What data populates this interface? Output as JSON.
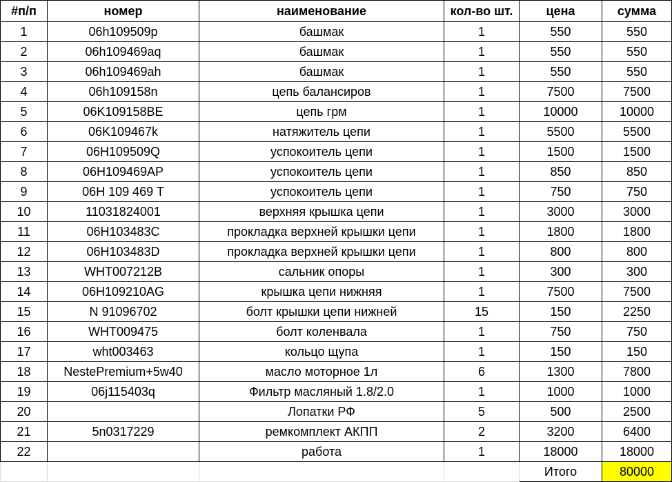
{
  "headers": [
    "#п/п",
    "номер",
    "наименование",
    "кол-во шт.",
    "цена",
    "сумма"
  ],
  "rows": [
    [
      "1",
      "06h109509p",
      "башмак",
      "1",
      "550",
      "550"
    ],
    [
      "2",
      "06h109469aq",
      "башмак",
      "1",
      "550",
      "550"
    ],
    [
      "3",
      "06h109469ah",
      "башмак",
      "1",
      "550",
      "550"
    ],
    [
      "4",
      "06h109158n",
      "цепь балансиров",
      "1",
      "7500",
      "7500"
    ],
    [
      "5",
      "06K109158BE",
      "цепь грм",
      "1",
      "10000",
      "10000"
    ],
    [
      "6",
      "06K109467k",
      "натяжитель цепи",
      "1",
      "5500",
      "5500"
    ],
    [
      "7",
      "06H109509Q",
      "успокоитель цепи",
      "1",
      "1500",
      "1500"
    ],
    [
      "8",
      "06H109469AP",
      "успокоитель цепи",
      "1",
      "850",
      "850"
    ],
    [
      "9",
      "06H 109 469 T",
      "успокоитель цепи",
      "1",
      "750",
      "750"
    ],
    [
      "10",
      "11031824001",
      "верхняя крышка цепи",
      "1",
      "3000",
      "3000"
    ],
    [
      "11",
      "06H103483C",
      "прокладка верхней крышки цепи",
      "1",
      "1800",
      "1800"
    ],
    [
      "12",
      "06H103483D",
      "прокладка верхней крышки цепи",
      "1",
      "800",
      "800"
    ],
    [
      "13",
      "WHT007212B",
      "сальник опоры",
      "1",
      "300",
      "300"
    ],
    [
      "14",
      "06H109210AG",
      "крышка цепи нижняя",
      "1",
      "7500",
      "7500"
    ],
    [
      "15",
      "N  91096702",
      "болт крышки цепи нижней",
      "15",
      "150",
      "2250"
    ],
    [
      "16",
      "WHT009475",
      "болт коленвала",
      "1",
      "750",
      "750"
    ],
    [
      "17",
      "wht003463",
      "кольцо щупа",
      "1",
      "150",
      "150"
    ],
    [
      "18",
      "NestePremium+5w40",
      "масло моторное 1л",
      "6",
      "1300",
      "7800"
    ],
    [
      "19",
      "06j115403q",
      "Фильтр масляный 1.8/2.0",
      "1",
      "1000",
      "1000"
    ],
    [
      "20",
      "",
      "Лопатки РФ",
      "5",
      "500",
      "2500"
    ],
    [
      "21",
      "5n0317229",
      "ремкомплект АКПП",
      "2",
      "3200",
      "6400"
    ],
    [
      "22",
      "",
      "работа",
      "1",
      "18000",
      "18000"
    ]
  ],
  "total": {
    "label": "Итого",
    "value": "80000"
  },
  "colors": {
    "highlight": "#ffff00"
  }
}
